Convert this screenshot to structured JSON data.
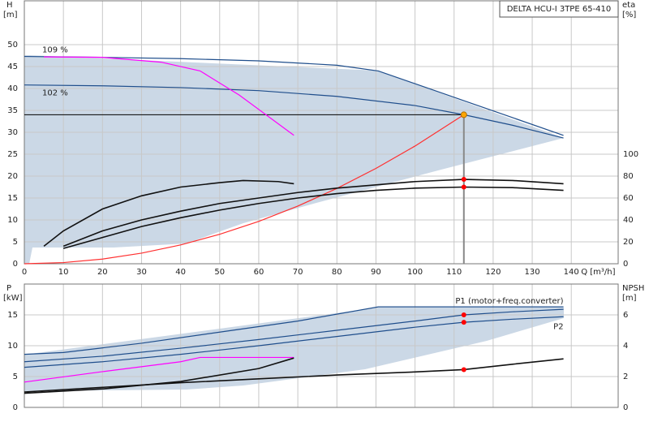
{
  "chart_data": [
    {
      "type": "line",
      "title": "DELTA HCU-I 3TPE 65-410",
      "ylabel": "H",
      "yunit": "[m]",
      "y2label": "eta",
      "y2unit": "[%]",
      "xlabel": "Q [m³/h]",
      "xlim": [
        0,
        152
      ],
      "xticks": [
        0,
        10,
        20,
        30,
        40,
        50,
        60,
        70,
        80,
        90,
        100,
        110,
        120,
        130,
        140
      ],
      "ylim": [
        0,
        60
      ],
      "yticks": [
        0,
        5,
        10,
        15,
        20,
        25,
        30,
        35,
        40,
        45,
        50
      ],
      "y2lim": [
        0,
        240
      ],
      "y2ticks": [
        0,
        20,
        40,
        60,
        80,
        100
      ],
      "grid": true,
      "legend": "curve-start",
      "operating_point": {
        "x": 112.5,
        "y": 34,
        "color": "#ffa500"
      },
      "series": [
        {
          "name": "109 %",
          "color": "#1f4e8c",
          "x": [
            0,
            20,
            40,
            60,
            80,
            90.6,
            138
          ],
          "values": [
            47.3,
            47.1,
            46.8,
            46.3,
            45.3,
            44,
            29.3
          ]
        },
        {
          "name": "102 %",
          "color": "#1f4e8c",
          "x": [
            0,
            20,
            40,
            60,
            80,
            100,
            112.5,
            125,
            138
          ],
          "values": [
            40.8,
            40.6,
            40.2,
            39.5,
            38.2,
            36.1,
            34,
            31.6,
            28.7
          ]
        },
        {
          "color": "#ff00ff",
          "x": [
            5,
            20,
            35,
            45,
            55,
            69
          ],
          "values": [
            47.2,
            47.1,
            46,
            44,
            38.5,
            29.3
          ]
        },
        {
          "color": "#ff3030",
          "x": [
            0,
            10,
            20,
            30,
            40,
            50,
            60,
            70,
            80,
            90,
            100,
            112.5
          ],
          "values": [
            0,
            0.27,
            1.07,
            2.42,
            4.3,
            6.72,
            9.67,
            13.16,
            17.19,
            21.76,
            26.86,
            34
          ]
        },
        {
          "color": "#111111",
          "axis": "y2",
          "x": [
            5,
            10,
            20,
            30,
            40,
            50,
            56,
            65,
            69
          ],
          "values": [
            16,
            30,
            50,
            62,
            70,
            74,
            76,
            75,
            73
          ]
        },
        {
          "color": "#111111",
          "axis": "y2",
          "marker_color": "#ff0000",
          "x": [
            10,
            20,
            30,
            40,
            50,
            60,
            70,
            80,
            90,
            100,
            112.5,
            125,
            138
          ],
          "values": [
            16,
            30,
            40,
            48,
            55,
            60,
            65,
            69,
            72,
            75,
            77,
            76,
            73
          ]
        },
        {
          "color": "#111111",
          "axis": "y2",
          "marker_color": "#ff0000",
          "x": [
            10,
            20,
            30,
            40,
            50,
            60,
            70,
            80,
            90,
            100,
            112.5,
            125,
            138
          ],
          "values": [
            14,
            24,
            34,
            42,
            49,
            55,
            60,
            64,
            67,
            69,
            70,
            69.5,
            67
          ]
        }
      ]
    },
    {
      "type": "line",
      "ylabel": "P",
      "yunit": "[kW]",
      "y2label": "NPSH",
      "y2unit": "[m]",
      "xlim": [
        0,
        152
      ],
      "xticks": [
        0,
        10,
        20,
        30,
        40,
        50,
        60,
        70,
        80,
        90,
        100,
        110,
        120,
        130,
        140
      ],
      "ylim": [
        0,
        20
      ],
      "yticks": [
        0,
        5,
        10,
        15
      ],
      "y2lim": [
        0,
        8
      ],
      "y2ticks": [
        0,
        2,
        4,
        6
      ],
      "grid": true,
      "legend": "curve-end",
      "series": [
        {
          "color": "#1f4e8c",
          "x": [
            0,
            10,
            30,
            50,
            70,
            90.6,
            138
          ],
          "values": [
            8.6,
            8.9,
            10.4,
            12.2,
            14,
            16.3,
            16.3
          ]
        },
        {
          "name": "P1 (motor+freq.converter)",
          "color": "#1f4e8c",
          "marker_color": "#ff0000",
          "x": [
            0,
            20,
            40,
            60,
            80,
            100,
            112.5,
            125,
            138
          ],
          "values": [
            7.4,
            8.3,
            9.6,
            11,
            12.5,
            14,
            15,
            15.5,
            15.9
          ]
        },
        {
          "name": "P2",
          "color": "#1f4e8c",
          "marker_color": "#ff0000",
          "x": [
            0,
            20,
            40,
            60,
            80,
            100,
            112.5,
            125,
            138
          ],
          "values": [
            6.5,
            7.4,
            8.6,
            10,
            11.5,
            13,
            13.8,
            14.3,
            14.7
          ]
        },
        {
          "color": "#ff00ff",
          "x": [
            0,
            20,
            40,
            45,
            69
          ],
          "values": [
            4.1,
            5.8,
            7.4,
            8.1,
            8.1
          ]
        },
        {
          "color": "#111111",
          "x": [
            0,
            20,
            40,
            60,
            69
          ],
          "values": [
            2.3,
            3,
            4.2,
            6.3,
            8
          ]
        },
        {
          "color": "#111111",
          "axis": "y2",
          "marker_color": "#ff0000",
          "x": [
            0,
            20,
            40,
            60,
            80,
            100,
            112.5,
            125,
            138
          ],
          "values": [
            1,
            1.3,
            1.6,
            1.85,
            2.1,
            2.3,
            2.45,
            2.8,
            3.15
          ]
        }
      ]
    }
  ]
}
